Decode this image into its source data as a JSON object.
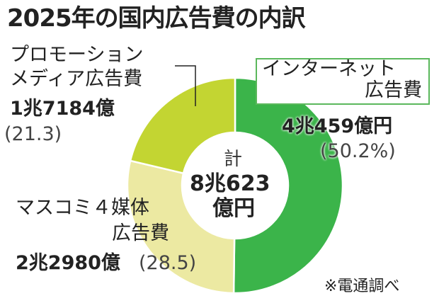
{
  "chart_data": {
    "type": "pie",
    "title": "2025年の国内広告費の内訳",
    "center_label": {
      "line1": "計",
      "line2": "8兆623",
      "line3": "億円"
    },
    "slices": [
      {
        "name_line1": "インターネット",
        "name_line2": "広告費",
        "amount": "4兆459億円",
        "percent_label": "(50.2%)",
        "value": 50.2,
        "color": "#3bb44a"
      },
      {
        "name_line1": "マスコミ４媒体",
        "name_line2": "広告費",
        "amount": "2兆2980億",
        "percent_label": "(28.5)",
        "value": 28.5,
        "color": "#ece9a2"
      },
      {
        "name_line1": "プロモーション",
        "name_line2": "メディア広告費",
        "amount": "1兆7184億",
        "percent_label": "(21.3)",
        "value": 21.3,
        "color": "#c3d532"
      }
    ],
    "source": "※電通調べ"
  }
}
